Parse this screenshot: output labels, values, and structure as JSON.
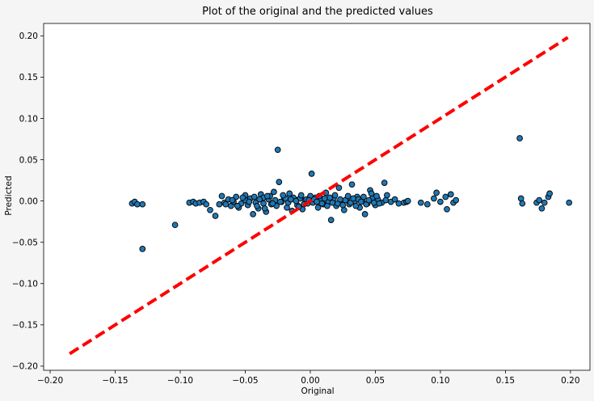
{
  "chart_data": {
    "type": "scatter",
    "title": "Plot of the original and the predicted values",
    "xlabel": "Original",
    "ylabel": "Predicted",
    "xlim": [
      -0.205,
      0.215
    ],
    "ylim": [
      -0.205,
      0.215
    ],
    "xticks": [
      -0.2,
      -0.15,
      -0.1,
      -0.05,
      0.0,
      0.05,
      0.1,
      0.15,
      0.2
    ],
    "yticks": [
      -0.2,
      -0.15,
      -0.1,
      -0.05,
      0.0,
      0.05,
      0.1,
      0.15,
      0.2
    ],
    "xtick_labels": [
      "−0.20",
      "−0.15",
      "−0.10",
      "−0.05",
      "0.00",
      "0.05",
      "0.10",
      "0.15",
      "0.20"
    ],
    "ytick_labels": [
      "−0.20",
      "−0.15",
      "−0.10",
      "−0.05",
      "0.00",
      "0.05",
      "0.10",
      "0.15",
      "0.20"
    ],
    "grid": false,
    "marker_color": "#1f77b4",
    "marker_edge_color": "#000000",
    "reference_line": {
      "from": [
        -0.185,
        -0.185
      ],
      "to": [
        0.198,
        0.198
      ],
      "color": "#ff0000",
      "style": "dashed"
    },
    "points": [
      [
        -0.137,
        -0.003
      ],
      [
        -0.135,
        -0.001
      ],
      [
        -0.133,
        -0.004
      ],
      [
        -0.129,
        -0.004
      ],
      [
        -0.129,
        -0.058
      ],
      [
        -0.104,
        -0.029
      ],
      [
        -0.093,
        -0.002
      ],
      [
        -0.09,
        -0.001
      ],
      [
        -0.088,
        -0.003
      ],
      [
        -0.085,
        -0.002
      ],
      [
        -0.082,
        -0.001
      ],
      [
        -0.08,
        -0.004
      ],
      [
        -0.077,
        -0.011
      ],
      [
        -0.073,
        -0.018
      ],
      [
        -0.07,
        -0.004
      ],
      [
        -0.066,
        -0.002
      ],
      [
        -0.063,
        0.002
      ],
      [
        -0.061,
        -0.006
      ],
      [
        -0.059,
        -0.001
      ],
      [
        -0.057,
        0.005
      ],
      [
        -0.055,
        -0.008
      ],
      [
        -0.053,
        -0.003
      ],
      [
        -0.05,
        0.001
      ],
      [
        -0.048,
        -0.005
      ],
      [
        -0.046,
        0.003
      ],
      [
        -0.044,
        -0.016
      ],
      [
        -0.042,
        -0.002
      ],
      [
        -0.04,
        -0.009
      ],
      [
        -0.038,
        0.008
      ],
      [
        -0.036,
        -0.003
      ],
      [
        -0.034,
        -0.013
      ],
      [
        -0.032,
        0.002
      ],
      [
        -0.03,
        -0.004
      ],
      [
        -0.028,
        0.011
      ],
      [
        -0.026,
        -0.006
      ],
      [
        -0.025,
        0.062
      ],
      [
        -0.024,
        0.023
      ],
      [
        -0.022,
        -0.001
      ],
      [
        -0.02,
        0.004
      ],
      [
        -0.018,
        -0.008
      ],
      [
        -0.016,
        0.009
      ],
      [
        -0.014,
        -0.012
      ],
      [
        -0.012,
        0.002
      ],
      [
        -0.01,
        -0.005
      ],
      [
        -0.008,
        0.003
      ],
      [
        -0.006,
        -0.01
      ],
      [
        -0.004,
        0.001
      ],
      [
        -0.002,
        -0.003
      ],
      [
        0.0,
        0.006
      ],
      [
        0.001,
        0.033
      ],
      [
        0.002,
        -0.002
      ],
      [
        0.004,
        0.004
      ],
      [
        0.006,
        -0.008
      ],
      [
        0.008,
        0.001
      ],
      [
        0.01,
        -0.004
      ],
      [
        0.012,
        0.01
      ],
      [
        0.014,
        -0.001
      ],
      [
        0.016,
        -0.023
      ],
      [
        0.018,
        0.003
      ],
      [
        0.02,
        -0.006
      ],
      [
        0.022,
        0.016
      ],
      [
        0.024,
        -0.002
      ],
      [
        0.026,
        -0.011
      ],
      [
        0.028,
        0.002
      ],
      [
        0.03,
        -0.004
      ],
      [
        0.032,
        0.02
      ],
      [
        0.034,
        -0.001
      ],
      [
        0.036,
        0.005
      ],
      [
        0.038,
        -0.008
      ],
      [
        0.04,
        0.001
      ],
      [
        0.042,
        -0.016
      ],
      [
        0.044,
        -0.003
      ],
      [
        0.046,
        0.013
      ],
      [
        0.048,
        0.004
      ],
      [
        0.05,
        -0.005
      ],
      [
        0.052,
        0.002
      ],
      [
        0.055,
        -0.002
      ],
      [
        0.057,
        0.022
      ],
      [
        0.059,
        0.007
      ],
      [
        0.062,
        -0.001
      ],
      [
        0.065,
        0.002
      ],
      [
        0.068,
        -0.003
      ],
      [
        0.072,
        -0.002
      ],
      [
        0.074,
        -0.001
      ],
      [
        0.075,
        0.0
      ],
      [
        0.085,
        -0.002
      ],
      [
        0.09,
        -0.004
      ],
      [
        0.095,
        0.003
      ],
      [
        0.097,
        0.01
      ],
      [
        0.1,
        -0.001
      ],
      [
        0.104,
        0.005
      ],
      [
        0.105,
        -0.01
      ],
      [
        0.108,
        0.008
      ],
      [
        0.11,
        -0.002
      ],
      [
        0.112,
        0.001
      ],
      [
        0.161,
        0.076
      ],
      [
        0.162,
        0.003
      ],
      [
        0.163,
        -0.003
      ],
      [
        0.174,
        -0.002
      ],
      [
        0.176,
        0.001
      ],
      [
        0.178,
        -0.009
      ],
      [
        0.18,
        -0.002
      ],
      [
        0.183,
        0.005
      ],
      [
        0.184,
        0.009
      ],
      [
        0.199,
        -0.002
      ],
      [
        -0.036,
        0.004
      ],
      [
        -0.031,
        0.006
      ],
      [
        -0.027,
        0.001
      ],
      [
        -0.023,
        -0.001
      ],
      [
        -0.019,
        0.003
      ],
      [
        -0.017,
        -0.002
      ],
      [
        -0.013,
        0.004
      ],
      [
        -0.011,
        0.0
      ],
      [
        -0.009,
        -0.007
      ],
      [
        -0.007,
        0.007
      ],
      [
        -0.005,
        -0.004
      ],
      [
        -0.003,
        0.002
      ],
      [
        -0.001,
        0.001
      ],
      [
        0.003,
        0.002
      ],
      [
        0.005,
        -0.001
      ],
      [
        0.007,
        0.006
      ],
      [
        0.009,
        -0.003
      ],
      [
        0.011,
        0.003
      ],
      [
        0.013,
        -0.006
      ],
      [
        0.015,
        0.004
      ],
      [
        0.017,
        -0.002
      ],
      [
        0.019,
        0.007
      ],
      [
        0.021,
        -0.003
      ],
      [
        0.023,
        0.002
      ],
      [
        0.025,
        -0.005
      ],
      [
        0.027,
        0.001
      ],
      [
        0.029,
        0.006
      ],
      [
        0.031,
        -0.002
      ],
      [
        0.033,
        0.003
      ],
      [
        0.035,
        -0.006
      ],
      [
        0.037,
        0.002
      ],
      [
        0.039,
        -0.001
      ],
      [
        0.041,
        0.005
      ],
      [
        0.043,
        -0.004
      ],
      [
        0.045,
        0.001
      ],
      [
        -0.05,
        0.007
      ],
      [
        -0.047,
        -0.001
      ],
      [
        -0.043,
        0.005
      ],
      [
        -0.041,
        -0.006
      ],
      [
        -0.039,
        0.002
      ],
      [
        -0.035,
        -0.009
      ],
      [
        -0.033,
        0.006
      ],
      [
        -0.029,
        -0.003
      ],
      [
        -0.021,
        0.007
      ],
      [
        -0.015,
        0.002
      ],
      [
        -0.068,
        0.006
      ],
      [
        -0.065,
        -0.004
      ],
      [
        -0.06,
        0.001
      ],
      [
        -0.056,
        -0.006
      ],
      [
        -0.052,
        0.004
      ],
      [
        0.047,
        0.009
      ],
      [
        0.049,
        -0.002
      ],
      [
        0.051,
        0.006
      ],
      [
        0.053,
        -0.003
      ],
      [
        0.058,
        0.001
      ]
    ]
  }
}
